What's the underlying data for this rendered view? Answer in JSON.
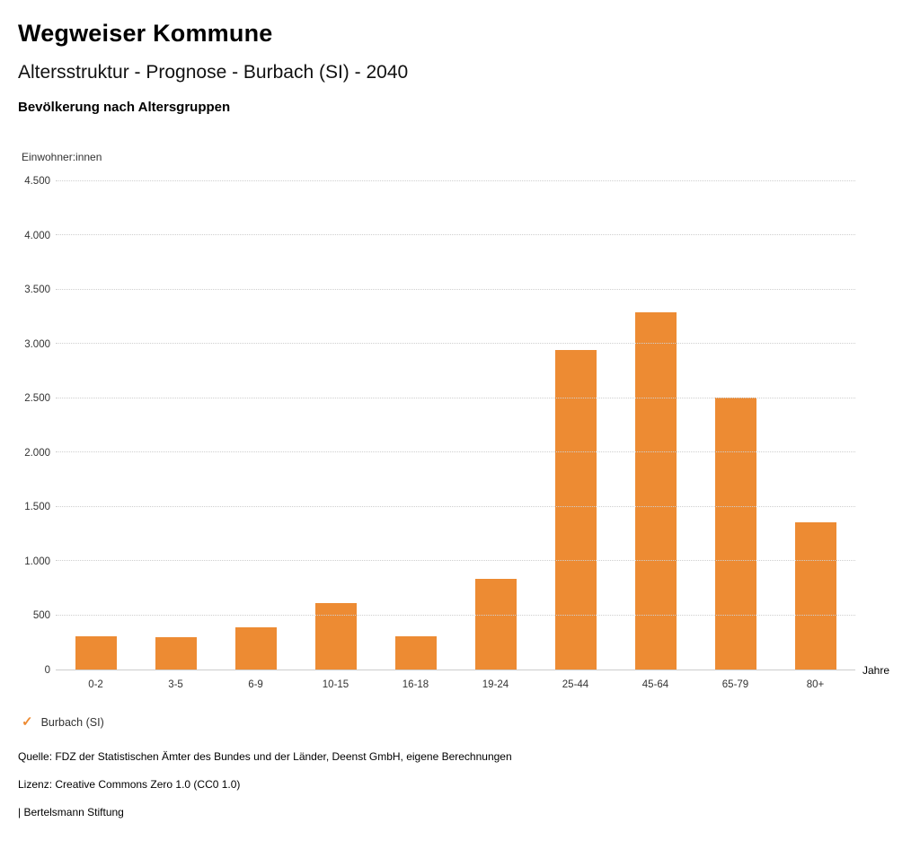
{
  "header": {
    "title": "Wegweiser Kommune",
    "subtitle": "Altersstruktur - Prognose - Burbach (SI) - 2040",
    "chart_title": "Bevölkerung nach Altersgruppen"
  },
  "chart_data": {
    "type": "bar",
    "title": "Bevölkerung nach Altersgruppen",
    "categories": [
      "0-2",
      "3-5",
      "6-9",
      "10-15",
      "16-18",
      "19-24",
      "25-44",
      "45-64",
      "65-79",
      "80+"
    ],
    "series": [
      {
        "name": "Burbach (SI)",
        "values": [
          310,
          300,
          390,
          610,
          310,
          835,
          2945,
          3290,
          2510,
          1355
        ]
      }
    ],
    "ylabel": "Einwohner:innen",
    "xlabel": "Jahre",
    "ylim": [
      0,
      4500
    ],
    "ytick_step": 500,
    "ytick_labels": [
      "0",
      "500",
      "1.000",
      "1.500",
      "2.000",
      "2.500",
      "3.000",
      "3.500",
      "4.000",
      "4.500"
    ],
    "grid": true,
    "legend_position": "bottom-left",
    "bar_color": "#ED8B33"
  },
  "legend": {
    "marker": "check-icon",
    "label": "Burbach (SI)",
    "color": "#ED8B33"
  },
  "footer": {
    "source": "Quelle: FDZ der Statistischen Ämter des Bundes und der Länder, Deenst GmbH, eigene Berechnungen",
    "license": "Lizenz: Creative Commons Zero 1.0 (CC0 1.0)",
    "brand": "| Bertelsmann Stiftung"
  }
}
